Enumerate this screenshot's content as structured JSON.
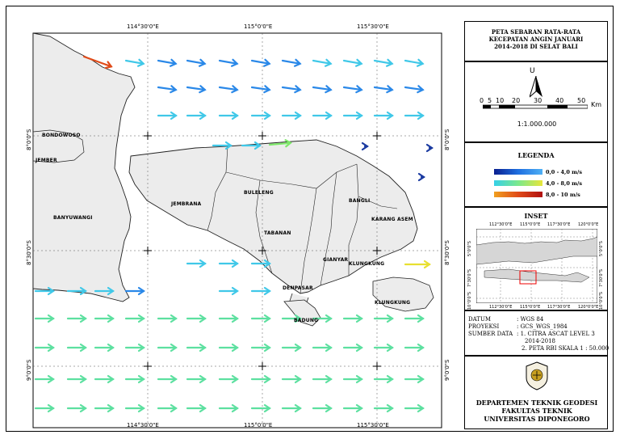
{
  "map": {
    "top_ticks": [
      "114°30'0\"E",
      "115°0'0\"E",
      "115°30'0\"E"
    ],
    "bottom_ticks": [
      "114°30'0\"E",
      "115°0'0\"E",
      "115°30'0\"E"
    ],
    "left_ticks": [
      "8°0'0\"S",
      "8°30'0\"S",
      "9°0'0\"S"
    ],
    "right_ticks": [
      "8°0'0\"S",
      "8°30'0\"S",
      "9°0'0\"S"
    ],
    "places": {
      "bondowoso": "BONDOWOSO",
      "jember": "JEMBER",
      "banyuwangi": "BANYUWANGI",
      "jembrana": "JEMBRANA",
      "buleleng": "BULELENG",
      "bangli": "BANGLI",
      "karangasem": "KARANG ASEM",
      "tabanan": "TABANAN",
      "gianyar": "GIANYAR",
      "klungkung1": "KLUNGKUNG",
      "denpasar": "DENPASAR",
      "klungkung2": "KLUNGKUNG",
      "badung": "BADUNG"
    }
  },
  "title": {
    "line1": "PETA SEBARAN RATA-RATA",
    "line2": "KECEPATAN ANGIN JANUARI",
    "line3": "2014-2018 DI SELAT BALI"
  },
  "scale": {
    "north": "U",
    "labels": [
      "0",
      "5",
      "10",
      "20",
      "30",
      "40",
      "50"
    ],
    "unit": "Km",
    "ratio": "1:1.000.000"
  },
  "legend": {
    "title": "LEGENDA",
    "items": [
      {
        "label": "0,0 - 4,0 m/s",
        "colors": [
          "#0a1f8f",
          "#1e6fe0",
          "#4fb0f5"
        ]
      },
      {
        "label": "4,0 - 8,0 m/s",
        "colors": [
          "#35d0e8",
          "#7be88c",
          "#e8e63a"
        ]
      },
      {
        "label": "8,0 - 10 m/s",
        "colors": [
          "#f0a020",
          "#e04a18",
          "#b01010"
        ]
      }
    ]
  },
  "inset": {
    "title": "INSET",
    "top_ticks": [
      "112°30'0\"E",
      "115°0'0\"E",
      "117°30'0\"E",
      "120°0'0\"E"
    ],
    "bottom_ticks": [
      "112°30'0\"E",
      "115°0'0\"E",
      "117°30'0\"E",
      "120°0'0\"E"
    ],
    "left_ticks": [
      "5°0'0\"S",
      "7°30'0\"S",
      "10°0'0\"S"
    ],
    "right_ticks": [
      "5°0'0\"S",
      "7°30'0\"S",
      "10°0'0\"S"
    ]
  },
  "info": {
    "datum_label": "DATUM",
    "datum_value": ": WGS 84",
    "proyeksi_label": "PROYEKSI",
    "proyeksi_value": ": GCS_WGS_1984",
    "sumber_label": "SUMBER DATA",
    "sumber_value1": ": 1. CITRA ASCAT LEVEL 3",
    "sumber_value2": "2014-2018",
    "sumber_value3": "2. PETA RBI SKALA 1 : 50.000"
  },
  "footer": {
    "line1": "DEPARTEMEN TEKNIK GEODESI",
    "line2": "FAKULTAS TEKNIK",
    "line3": "UNIVERSITAS DIPONEGORO"
  },
  "wind_rows": [
    {
      "label": "row-1",
      "colors": [
        "#e04a18",
        "#35d0e8",
        "#1e6fe0",
        "#1e6fe0",
        "#1e6fe0",
        "#1e6fe0",
        "#1e6fe0",
        "#35d0e8",
        "#35d0e8",
        "#35d0e8",
        "#35d0e8"
      ],
      "speeds": [
        8.6,
        5.0,
        3.0,
        3.0,
        3.0,
        3.0,
        3.0,
        4.5,
        4.5,
        4.5,
        4.5
      ]
    },
    {
      "label": "row-2",
      "colors": [
        "#1e6fe0",
        "#1e6fe0",
        "#1e6fe0",
        "#1e6fe0",
        "#1e6fe0",
        "#1e6fe0",
        "#1e6fe0",
        "#4fb0f5",
        "#4fb0f5"
      ],
      "speeds": [
        3.0,
        3.0,
        3.0,
        3.0,
        3.0,
        3.0,
        3.0,
        3.8,
        3.8
      ]
    }
  ]
}
